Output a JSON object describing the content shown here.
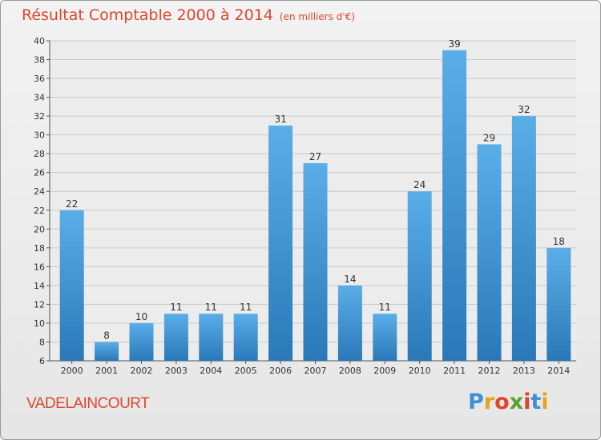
{
  "title": "Résultat Comptable 2000 à 2014",
  "subtitle": "(en milliers d'€)",
  "commune": "VADELAINCOURT",
  "brand": {
    "text": "Proxiti",
    "letter_colors": [
      "#3d8fd6",
      "#e8a21a",
      "#e0452e",
      "#5aa12f",
      "#e0452e",
      "#3d8fd6",
      "#e8a21a"
    ]
  },
  "colors": {
    "bar_top": "#5aaee8",
    "bar_bottom": "#2a78b8",
    "title": "#d9482f",
    "grid": "#c8c8c8"
  },
  "chart_data": {
    "type": "bar",
    "categories": [
      "2000",
      "2001",
      "2002",
      "2003",
      "2004",
      "2005",
      "2006",
      "2007",
      "2008",
      "2009",
      "2010",
      "2011",
      "2012",
      "2013",
      "2014"
    ],
    "values": [
      22,
      8,
      10,
      11,
      11,
      11,
      31,
      27,
      14,
      11,
      24,
      39,
      29,
      32,
      18
    ],
    "ylim": [
      6,
      40
    ],
    "yticks": [
      6,
      8,
      10,
      12,
      14,
      16,
      18,
      20,
      22,
      24,
      26,
      28,
      30,
      32,
      34,
      36,
      38,
      40
    ],
    "grid": true,
    "xlabel": "",
    "ylabel": ""
  }
}
